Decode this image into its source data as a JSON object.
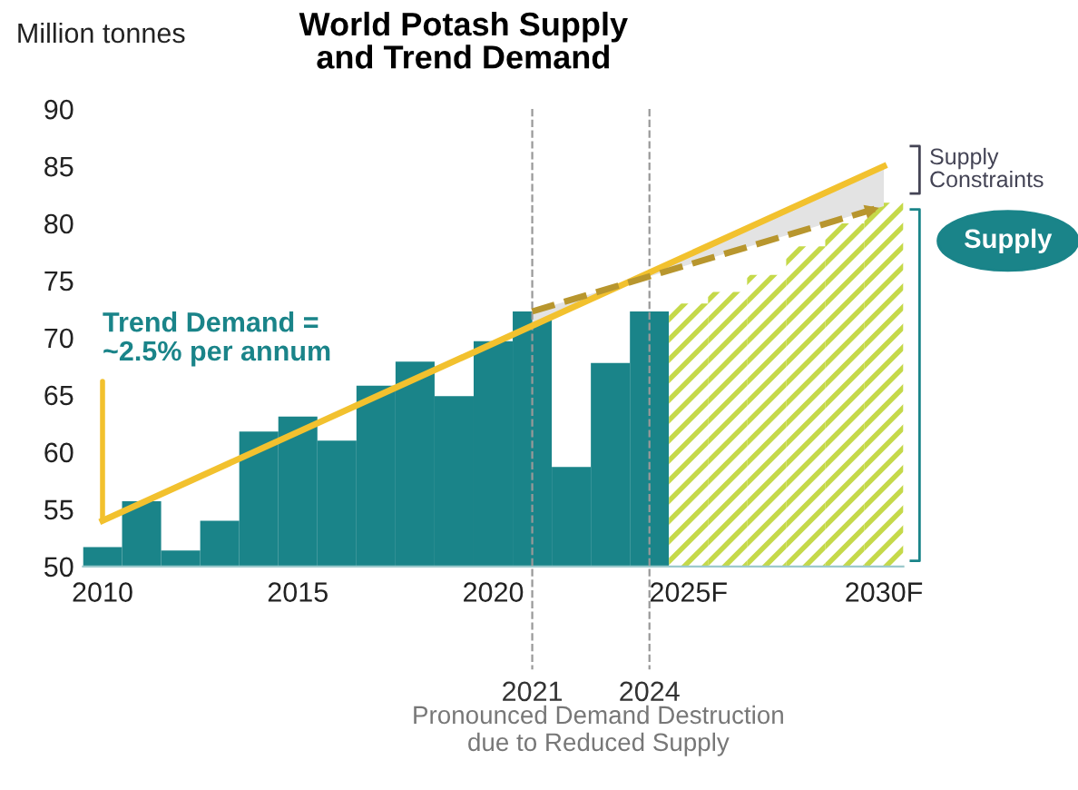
{
  "chart_data": {
    "type": "bar",
    "title": "World Potash Supply\nand Trend Demand",
    "ylabel": "Million tonnes",
    "series": [
      {
        "color": "#1a8489",
        "x": [
          2010,
          2011,
          2012,
          2013,
          2014,
          2015,
          2016,
          2017,
          2018,
          2019,
          2020,
          2021,
          2022,
          2023,
          2024
        ],
        "values": [
          51.7,
          55.7,
          51.4,
          54.0,
          61.8,
          63.1,
          61.0,
          65.8,
          67.9,
          64.9,
          69.7,
          72.3,
          58.7,
          67.8,
          72.3
        ]
      },
      {
        "color": "#c5d94a",
        "x": [
          2025,
          2026,
          2027,
          2028,
          2029,
          2030
        ],
        "values": [
          73.0,
          74.0,
          75.5,
          78.0,
          80.0,
          81.8
        ]
      },
      {
        "type": "line",
        "color": "#f2c12e",
        "x": [
          2010,
          2030
        ],
        "values": [
          54.0,
          85.0
        ]
      },
      {
        "type": "line",
        "color": "#b8962e",
        "line_style": "dashed",
        "x": [
          2021,
          2030
        ],
        "values": [
          72.3,
          81.5
        ],
        "lower": [
          72.3,
          81.5
        ],
        "upper": [
          71.1,
          85.0
        ]
      }
    ],
    "xlim": [
      2009.5,
      2030.5
    ],
    "xticks": [
      2010,
      2015,
      2020,
      {
        "value": 2025,
        "label": "2025F"
      },
      {
        "value": 2030,
        "label": "2030F"
      }
    ],
    "ylim": [
      50,
      90
    ],
    "yticks": [
      50,
      55,
      60,
      65,
      70,
      75,
      80,
      85,
      90
    ],
    "ref_lines": [
      {
        "axis": "x",
        "value": 2021,
        "label": "2021",
        "color": "#999999",
        "line_style": "dashed"
      },
      {
        "axis": "x",
        "value": 2024,
        "label": "2024",
        "color": "#999999",
        "line_style": "dashed"
      }
    ],
    "annotations": [
      {
        "text": "Trend Demand =\n~2.5% per annum",
        "x": 2010,
        "y": 54.0
      },
      "Supply\nConstraints",
      "Supply",
      "Pronounced Demand Destruction\ndue to Reduced Supply"
    ],
    "grid": false,
    "legend": false
  }
}
